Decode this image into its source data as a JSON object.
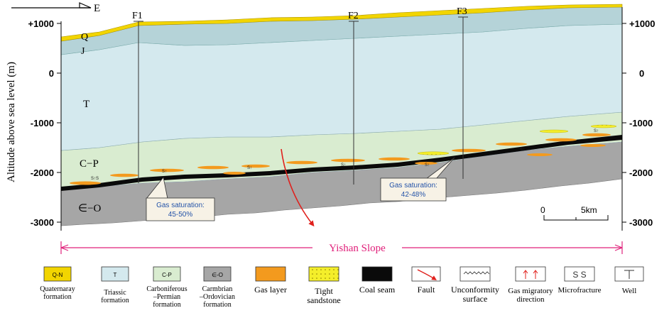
{
  "orientation": {
    "label": "E"
  },
  "y_axis": {
    "title": "Altitude above sea level (m)",
    "ticks": [
      "+1000",
      "0",
      "-1000",
      "-2000",
      "-3000"
    ],
    "ticks_right": [
      "+1000",
      "0",
      "-1000",
      "-2000",
      "-3000"
    ]
  },
  "wells": [
    "F1",
    "F2",
    "F3"
  ],
  "formation_labels": [
    "Q",
    "J",
    "T",
    "C−P",
    "∈−O"
  ],
  "callouts": [
    {
      "title": "Gas saturation:",
      "value": "45-50%"
    },
    {
      "title": "Gas saturation:",
      "value": "42-48%"
    }
  ],
  "scale_bar": {
    "start": "0",
    "end": "5km"
  },
  "region_label": "Yishan Slope",
  "colors": {
    "quaternary": "#f2d500",
    "jurassic": "#b5d3d8",
    "triassic": "#d4e9ee",
    "carbon_permian": "#d9ecd0",
    "cambrian_ordovician": "#a6a6a6",
    "gas_layer": "#f39a1e",
    "tight_sandstone": "#f4ee2a",
    "coal_seam": "#0a0a0a",
    "fault": "#e0201c",
    "region_line": "#e0207a"
  },
  "legend": [
    {
      "code": "Q-N",
      "label": "Quaternaray formation",
      "swatch": "quaternary"
    },
    {
      "code": "T",
      "label": "Triassic formation",
      "swatch": "triassic"
    },
    {
      "code": "C-P",
      "label": "Carboniferous –Permian formation",
      "swatch": "carbon_permian"
    },
    {
      "code": "∈-O",
      "label": "Carmbrian –Ordovician formation",
      "swatch": "cambrian_ordovician"
    },
    {
      "code": "",
      "label": "Gas layer",
      "swatch": "gas_layer"
    },
    {
      "code": "",
      "label": "Tight sandstone",
      "swatch": "tight_sandstone"
    },
    {
      "code": "",
      "label": "Coal seam",
      "swatch": "coal_seam"
    },
    {
      "code": "",
      "label": "Fault",
      "swatch": "fault-icon"
    },
    {
      "code": "",
      "label": "Unconformity surface",
      "swatch": "unconformity-icon"
    },
    {
      "code": "",
      "label": "Gas migratory direction",
      "swatch": "arrows-icon"
    },
    {
      "code": "",
      "label": "Microfracture",
      "swatch": "microfracture-icon"
    },
    {
      "code": "",
      "label": "Well",
      "swatch": "well-icon"
    }
  ]
}
